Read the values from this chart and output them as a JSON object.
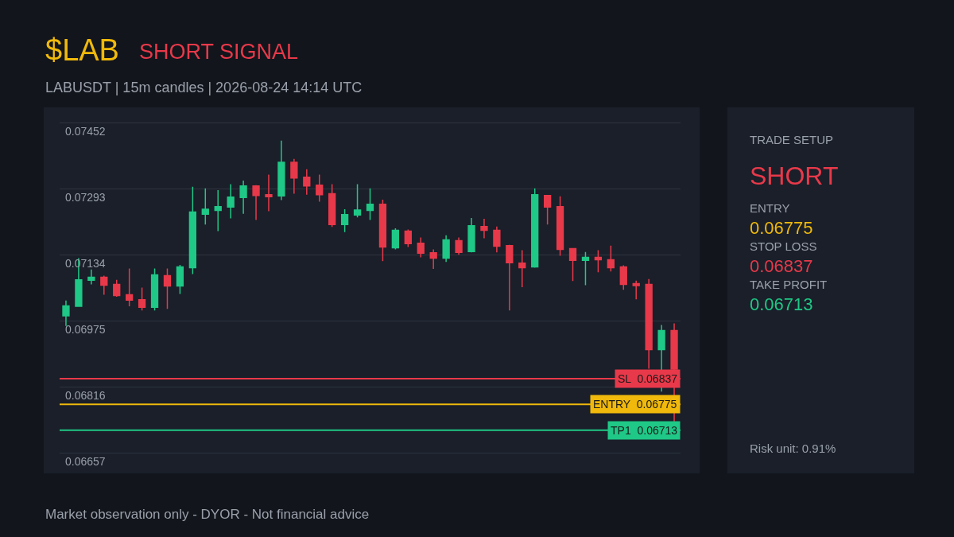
{
  "chart_data": [
    {
      "type": "candlestick",
      "title": "$LAB",
      "subtitle": "LABUSDT | 15m candles | 2026-08-24 14:14 UTC",
      "annotations": [
        "SHORT SIGNAL",
        "Market observation only - DYOR - Not financial advice"
      ],
      "categories": [
        null,
        null,
        null,
        null,
        null,
        null,
        null,
        null,
        null,
        null,
        null,
        null,
        null,
        null,
        null,
        null,
        null,
        null,
        null,
        null,
        null,
        null,
        null,
        null,
        null,
        null,
        null,
        null,
        null,
        null,
        null,
        null,
        null,
        null,
        null,
        null,
        null,
        null,
        null,
        null,
        null,
        null,
        null,
        null,
        null,
        null,
        null,
        null,
        null
      ],
      "ohlc": [
        [
          0.06988,
          0.07025,
          0.06964,
          0.07012
        ],
        [
          0.07011,
          0.07127,
          0.07011,
          0.07075
        ],
        [
          0.07074,
          0.071,
          0.07064,
          0.07081
        ],
        [
          0.07081,
          0.07085,
          0.07039,
          0.07062
        ],
        [
          0.07064,
          0.07075,
          0.07034,
          0.07037
        ],
        [
          0.07039,
          0.07102,
          0.07011,
          0.07026
        ],
        [
          0.07027,
          0.07056,
          0.07001,
          0.07009
        ],
        [
          0.07009,
          0.07102,
          0.07001,
          0.07087
        ],
        [
          0.07085,
          0.07102,
          0.07005,
          0.0706
        ],
        [
          0.0706,
          0.07111,
          0.07041,
          0.07106
        ],
        [
          0.07104,
          0.07299,
          0.07089,
          0.07238
        ],
        [
          0.07233,
          0.07295,
          0.07208,
          0.07245
        ],
        [
          0.07242,
          0.07291,
          0.07192,
          0.07251
        ],
        [
          0.0725,
          0.07305,
          0.07223,
          0.07274
        ],
        [
          0.07273,
          0.07314,
          0.07234,
          0.07301
        ],
        [
          0.07301,
          0.07303,
          0.07219,
          0.07278
        ],
        [
          0.0728,
          0.07328,
          0.0724,
          0.07275
        ],
        [
          0.07277,
          0.0741,
          0.07267,
          0.07358
        ],
        [
          0.07358,
          0.07366,
          0.07282,
          0.0732
        ],
        [
          0.07322,
          0.07341,
          0.0728,
          0.07301
        ],
        [
          0.07303,
          0.07328,
          0.07263,
          0.0728
        ],
        [
          0.07282,
          0.07305,
          0.07202,
          0.07208
        ],
        [
          0.07208,
          0.07245,
          0.0719,
          0.07232
        ],
        [
          0.07231,
          0.07305,
          0.07225,
          0.07243
        ],
        [
          0.07242,
          0.07295,
          0.07219,
          0.07257
        ],
        [
          0.07257,
          0.07268,
          0.0712,
          0.07154
        ],
        [
          0.07152,
          0.07199,
          0.07148,
          0.07194
        ],
        [
          0.07192,
          0.07196,
          0.07154,
          0.07162
        ],
        [
          0.07163,
          0.07177,
          0.07129,
          0.07139
        ],
        [
          0.0714,
          0.07148,
          0.07101,
          0.07127
        ],
        [
          0.07127,
          0.07182,
          0.07118,
          0.07171
        ],
        [
          0.07169,
          0.07177,
          0.07135,
          0.07141
        ],
        [
          0.07143,
          0.07224,
          0.07141,
          0.07205
        ],
        [
          0.07203,
          0.07222,
          0.07175,
          0.07194
        ],
        [
          0.07194,
          0.07203,
          0.07141,
          0.07156
        ],
        [
          0.07157,
          0.07159,
          0.07001,
          0.07116
        ],
        [
          0.07115,
          0.07146,
          0.07057,
          0.07104
        ],
        [
          0.07106,
          0.07295,
          0.07104,
          0.0728
        ],
        [
          0.07278,
          0.07278,
          0.07208,
          0.0725
        ],
        [
          0.07251,
          0.07276,
          0.07133,
          0.07148
        ],
        [
          0.0715,
          0.0715,
          0.07072,
          0.07122
        ],
        [
          0.07122,
          0.07142,
          0.07062,
          0.07129
        ],
        [
          0.07129,
          0.07146,
          0.07093,
          0.07123
        ],
        [
          0.07123,
          0.07157,
          0.07095,
          0.07104
        ],
        [
          0.07106,
          0.0711,
          0.07051,
          0.07064
        ],
        [
          0.07066,
          0.07073,
          0.07028,
          0.07061
        ],
        [
          0.07064,
          0.07077,
          0.06861,
          0.06907
        ],
        [
          0.06907,
          0.06966,
          0.06806,
          0.06953
        ],
        [
          0.06953,
          0.0697,
          0.06733,
          0.0686
        ]
      ],
      "ylim": [
        0.06609,
        0.0749
      ],
      "yticks": [
        0.06657,
        0.06816,
        0.06975,
        0.07134,
        0.07293,
        0.07452
      ],
      "grid": "y",
      "tick_labels": "y",
      "ref_lines": [
        {
          "axis": "y",
          "value": 0.06837,
          "label": "SL  0.06837",
          "color": "#e8394a"
        },
        {
          "axis": "y",
          "value": 0.06775,
          "label": "ENTRY  0.06775",
          "color": "#f0b90b"
        },
        {
          "axis": "y",
          "value": 0.06713,
          "label": "TP1  0.06713",
          "color": "#1fc886"
        }
      ]
    },
    {
      "type": "other",
      "annotations": [
        "TRADE SETUP",
        "SHORT",
        "ENTRY",
        "0.06775",
        "STOP LOSS",
        "0.06837",
        "TAKE PROFIT",
        "0.06713",
        "Risk unit: 0.91%"
      ],
      "colors": [
        "#9aa0aa",
        "#e8394a",
        "#9aa0aa",
        "#f0b90b",
        "#9aa0aa",
        "#e8394a",
        "#9aa0aa",
        "#1fc886",
        "#9aa0aa"
      ]
    }
  ]
}
